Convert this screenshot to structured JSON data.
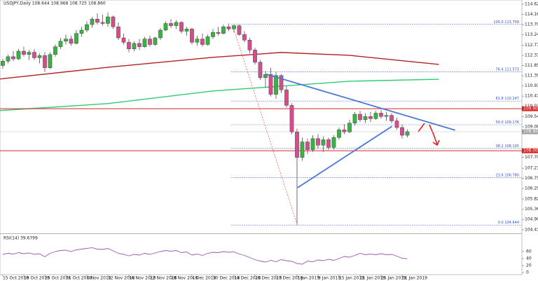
{
  "chart_data": [
    {
      "type": "candlestick",
      "title": "USDJPY,Daily 108.644 108.968 108.725 108.860",
      "up_color": "#3cb043",
      "down_color": "#d24f8c",
      "ohlc": [
        [
          111.85,
          112.15,
          111.7,
          112.05
        ],
        [
          112.05,
          112.35,
          111.95,
          112.25
        ],
        [
          112.25,
          112.5,
          112.05,
          112.15
        ],
        [
          112.15,
          112.6,
          112.1,
          112.5
        ],
        [
          112.5,
          112.7,
          112.25,
          112.35
        ],
        [
          112.35,
          112.55,
          112.1,
          112.45
        ],
        [
          112.45,
          112.6,
          112.1,
          112.2
        ],
        [
          112.2,
          112.4,
          111.95,
          112.3
        ],
        [
          112.3,
          112.45,
          111.55,
          111.75
        ],
        [
          111.75,
          112.45,
          111.7,
          112.35
        ],
        [
          112.35,
          112.8,
          112.25,
          112.7
        ],
        [
          112.7,
          113.1,
          112.6,
          112.95
        ],
        [
          112.95,
          113.25,
          112.8,
          113.05
        ],
        [
          113.05,
          113.2,
          112.75,
          112.85
        ],
        [
          112.85,
          113.45,
          112.8,
          113.3
        ],
        [
          113.3,
          113.6,
          113.15,
          113.45
        ],
        [
          113.45,
          113.85,
          113.35,
          113.7
        ],
        [
          113.7,
          114.05,
          113.55,
          113.95
        ],
        [
          113.95,
          114.2,
          113.7,
          113.8
        ],
        [
          113.8,
          114.15,
          113.65,
          113.75
        ],
        [
          113.75,
          114.25,
          113.6,
          114.05
        ],
        [
          114.05,
          114.1,
          113.5,
          113.6
        ],
        [
          113.6,
          113.8,
          113.0,
          113.1
        ],
        [
          113.1,
          113.3,
          112.8,
          112.9
        ],
        [
          112.9,
          113.05,
          112.45,
          112.6
        ],
        [
          112.6,
          112.95,
          112.5,
          112.85
        ],
        [
          112.85,
          113.05,
          112.55,
          112.7
        ],
        [
          112.7,
          113.15,
          112.65,
          113.05
        ],
        [
          113.05,
          113.2,
          112.7,
          112.8
        ],
        [
          112.8,
          113.15,
          112.75,
          113.1
        ],
        [
          113.1,
          113.55,
          113.0,
          113.45
        ],
        [
          113.45,
          113.85,
          113.4,
          113.75
        ],
        [
          113.75,
          113.95,
          113.55,
          113.65
        ],
        [
          113.65,
          113.9,
          113.5,
          113.8
        ],
        [
          113.8,
          113.85,
          113.3,
          113.4
        ],
        [
          113.4,
          113.6,
          113.2,
          113.5
        ],
        [
          113.5,
          113.55,
          112.8,
          112.9
        ],
        [
          112.9,
          113.2,
          112.75,
          113.05
        ],
        [
          113.05,
          113.3,
          112.7,
          112.8
        ],
        [
          112.8,
          113.25,
          112.75,
          113.15
        ],
        [
          113.15,
          113.5,
          113.05,
          113.35
        ],
        [
          113.35,
          113.6,
          113.2,
          113.3
        ],
        [
          113.3,
          113.7,
          113.25,
          113.6
        ],
        [
          113.6,
          113.75,
          113.4,
          113.5
        ],
        [
          113.5,
          113.71,
          113.35,
          113.65
        ],
        [
          113.65,
          113.7,
          113.2,
          113.25
        ],
        [
          113.25,
          113.4,
          112.9,
          113.0
        ],
        [
          113.0,
          113.1,
          112.4,
          112.55
        ],
        [
          112.55,
          112.65,
          111.9,
          112.0
        ],
        [
          112.0,
          112.1,
          111.2,
          111.3
        ],
        [
          111.3,
          111.6,
          110.85,
          111.45
        ],
        [
          111.45,
          111.75,
          110.45,
          110.55
        ],
        [
          110.55,
          111.55,
          110.35,
          111.4
        ],
        [
          111.4,
          111.45,
          110.6,
          110.75
        ],
        [
          110.75,
          110.9,
          109.95,
          110.05
        ],
        [
          110.05,
          110.15,
          108.75,
          108.85
        ],
        [
          108.85,
          109.0,
          104.64,
          107.7
        ],
        [
          107.7,
          108.6,
          107.55,
          108.4
        ],
        [
          108.4,
          108.55,
          107.85,
          108.05
        ],
        [
          108.05,
          108.7,
          107.95,
          108.55
        ],
        [
          108.55,
          108.75,
          108.1,
          108.25
        ],
        [
          108.25,
          108.65,
          107.95,
          108.5
        ],
        [
          108.5,
          108.6,
          108.05,
          108.15
        ],
        [
          108.15,
          108.7,
          108.05,
          108.6
        ],
        [
          108.6,
          109.05,
          108.5,
          108.95
        ],
        [
          108.95,
          109.2,
          108.75,
          108.85
        ],
        [
          108.85,
          109.4,
          108.8,
          109.25
        ],
        [
          109.25,
          109.75,
          109.15,
          109.65
        ],
        [
          109.65,
          109.8,
          109.3,
          109.4
        ],
        [
          109.4,
          109.7,
          109.25,
          109.55
        ],
        [
          109.55,
          109.75,
          109.3,
          109.45
        ],
        [
          109.45,
          109.8,
          109.4,
          109.7
        ],
        [
          109.7,
          109.85,
          109.45,
          109.55
        ],
        [
          109.55,
          109.75,
          109.35,
          109.6
        ],
        [
          109.6,
          109.7,
          109.25,
          109.35
        ],
        [
          109.35,
          109.5,
          108.95,
          109.05
        ],
        [
          109.05,
          109.2,
          108.55,
          108.7
        ],
        [
          108.7,
          108.97,
          108.6,
          108.86
        ]
      ],
      "xlim": [
        -0.53,
        98.8
      ],
      "ylim": [
        104.27,
        114.81
      ],
      "xticks": [
        {
          "value": 0,
          "label": "15 Oct 2018"
        },
        {
          "value": 4,
          "label": "19 Oct 2018"
        },
        {
          "value": 8,
          "label": "25 Oct 2018"
        },
        {
          "value": 12,
          "label": "31 Oct 2018"
        },
        {
          "value": 16,
          "label": "6 Nov 2018"
        },
        {
          "value": 20,
          "label": "12 Nov 2018"
        },
        {
          "value": 24,
          "label": "16 Nov 2018"
        },
        {
          "value": 28,
          "label": "22 Nov 2018"
        },
        {
          "value": 32,
          "label": "28 Nov 2018"
        },
        {
          "value": 36,
          "label": "4 Dec 2018"
        },
        {
          "value": 40,
          "label": "10 Dec 2018"
        },
        {
          "value": 44,
          "label": "14 Dec 2018"
        },
        {
          "value": 48,
          "label": "20 Dec 2018"
        },
        {
          "value": 52,
          "label": "27 Dec 2018"
        },
        {
          "value": 56,
          "label": "3 Jan 2019"
        },
        {
          "value": 60,
          "label": "9 Jan 2019"
        },
        {
          "value": 64,
          "label": "15 Jan 2019"
        },
        {
          "value": 68,
          "label": "21 Jan 2019"
        },
        {
          "value": 72,
          "label": "25 Jan 2019"
        },
        {
          "value": 76,
          "label": "31 Jan 2019"
        }
      ],
      "yticks": [
        {
          "value": 114.62,
          "label": "114.620"
        },
        {
          "value": 114.16,
          "label": "114.160"
        },
        {
          "value": 113.7,
          "label": "113.700"
        },
        {
          "value": 113.24,
          "label": "113.240"
        },
        {
          "value": 112.77,
          "label": "112.770"
        },
        {
          "value": 112.31,
          "label": "112.310"
        },
        {
          "value": 111.85,
          "label": "111.850"
        },
        {
          "value": 111.39,
          "label": "111.390"
        },
        {
          "value": 110.93,
          "label": "110.930"
        },
        {
          "value": 110.47,
          "label": "110.470"
        },
        {
          "value": 110.01,
          "label": "110.010"
        },
        {
          "value": 109.54,
          "label": "109.540"
        },
        {
          "value": 109.08,
          "label": "109.080"
        },
        {
          "value": 107.7,
          "label": "107.700"
        },
        {
          "value": 107.21,
          "label": "107.210"
        },
        {
          "value": 106.75,
          "label": "106.750"
        },
        {
          "value": 106.29,
          "label": "106.290"
        },
        {
          "value": 105.82,
          "label": "105.820"
        },
        {
          "value": 105.36,
          "label": "105.360"
        },
        {
          "value": 104.9,
          "label": "104.900"
        },
        {
          "value": 104.43,
          "label": "104.430"
        }
      ],
      "moving_averages": [
        {
          "color": "#b22222",
          "x": [
            -1,
            20,
            40,
            53,
            66,
            83
          ],
          "values": [
            111.23,
            111.77,
            112.22,
            112.44,
            112.31,
            111.9
          ]
        },
        {
          "color": "#2ecc71",
          "x": [
            -1,
            20,
            40,
            53,
            66,
            83
          ],
          "values": [
            109.81,
            110.13,
            110.7,
            110.92,
            111.14,
            111.23
          ]
        }
      ],
      "fib_start": 43.5,
      "fib_levels": [
        {
          "value": 113.709,
          "label": "100.0 113.709"
        },
        {
          "value": 111.573,
          "label": "76.4 111.573"
        },
        {
          "value": 110.247,
          "label": "61.8 110.247"
        },
        {
          "value": 109.176,
          "label": "50.0 109.176"
        },
        {
          "value": 108.105,
          "label": "38.2 108.105"
        },
        {
          "value": 106.78,
          "label": "23.6 106.780"
        },
        {
          "value": 104.644,
          "label": "0.0 104.644"
        }
      ],
      "levels": [
        {
          "value": 109.9,
          "label": "109.900",
          "color": "#d62728"
        },
        {
          "value": 108.0,
          "label": "108.000",
          "color": "#d62728"
        }
      ],
      "current_price": {
        "value": 108.86,
        "label": "108.860",
        "color": "#9e9e9e"
      },
      "trendlines": [
        {
          "x": [
            50.1,
            86.1
          ],
          "y": [
            111.46,
            108.93
          ],
          "color": "#4a78d6"
        },
        {
          "x": [
            56.1,
            74.1
          ],
          "y": [
            106.33,
            109.11
          ],
          "color": "#4a78d6"
        },
        {
          "x": [
            44.1,
            56.1
          ],
          "y": [
            113.39,
            104.62
          ],
          "color": "#e05a4a",
          "dashed": true
        }
      ]
    },
    {
      "type": "line",
      "title": "RSI(14) 39.6799",
      "color": "#9b59b6",
      "values": [
        52,
        55,
        53,
        57,
        54,
        56,
        52,
        54,
        45,
        55,
        60,
        63,
        64,
        60,
        65,
        67,
        69,
        71,
        67,
        66,
        69,
        62,
        55,
        52,
        48,
        52,
        50,
        55,
        52,
        56,
        60,
        63,
        61,
        63,
        57,
        59,
        50,
        53,
        49,
        55,
        58,
        57,
        60,
        58,
        59,
        53,
        49,
        43,
        37,
        33,
        30,
        35,
        31,
        37,
        34,
        32,
        26,
        24,
        33,
        31,
        36,
        34,
        38,
        35,
        40,
        46,
        44,
        49,
        55,
        51,
        53,
        51,
        54,
        51,
        52,
        47,
        41,
        39.68
      ],
      "ylim": [
        0,
        100
      ],
      "yticks": [
        0,
        20,
        40,
        60
      ]
    }
  ]
}
